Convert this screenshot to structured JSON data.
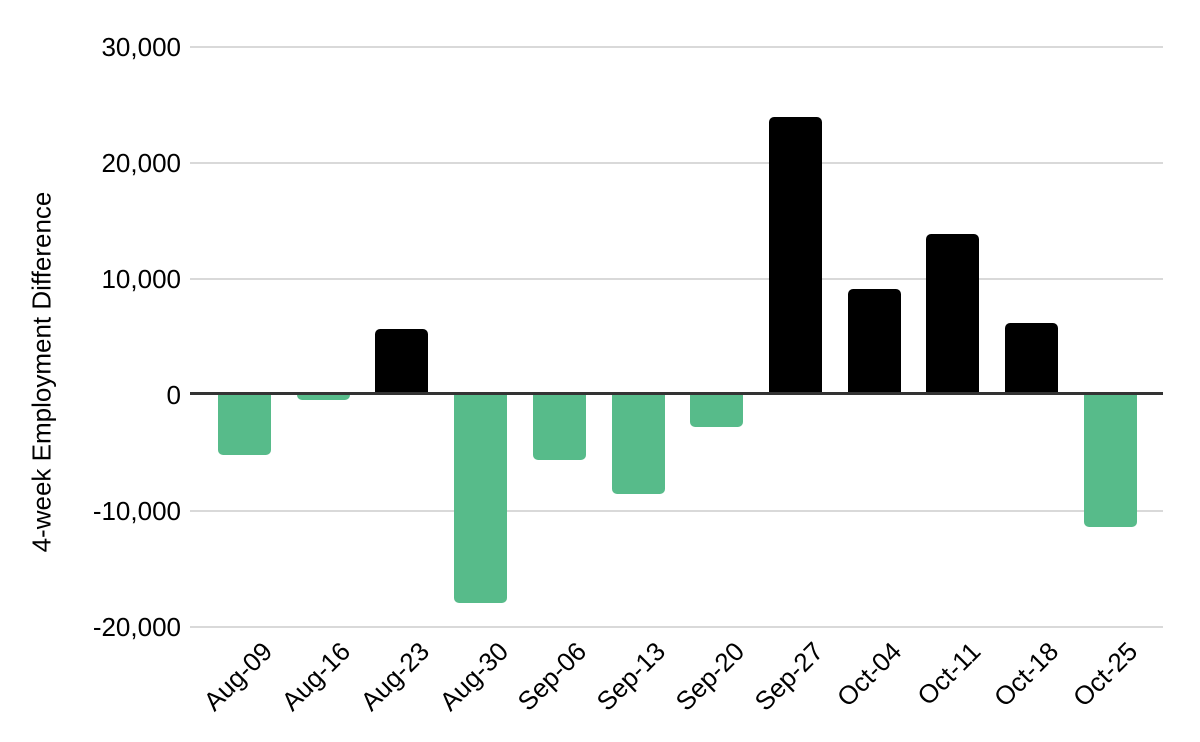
{
  "chart_data": {
    "type": "bar",
    "title": "",
    "xlabel": "",
    "ylabel": "4-week Employment Difference",
    "categories": [
      "Aug-09",
      "Aug-16",
      "Aug-23",
      "Aug-30",
      "Sep-06",
      "Sep-13",
      "Sep-20",
      "Sep-27",
      "Oct-04",
      "Oct-11",
      "Oct-18",
      "Oct-25"
    ],
    "values": [
      -5200,
      -400,
      5700,
      -17900,
      -5600,
      -8500,
      -2800,
      24000,
      9100,
      13900,
      6200,
      -11400
    ],
    "ylim": [
      -20000,
      30000
    ],
    "yticks": [
      {
        "value": 30000,
        "label": "30,000"
      },
      {
        "value": 20000,
        "label": "20,000"
      },
      {
        "value": 10000,
        "label": "10,000"
      },
      {
        "value": 0,
        "label": "0"
      },
      {
        "value": -10000,
        "label": "-10,000"
      },
      {
        "value": -20000,
        "label": "-20,000"
      }
    ],
    "grid": true,
    "legend": "none",
    "colors": {
      "positive_bar": "#000000",
      "negative_bar": "#57bb8a",
      "gridline": "#d9d9d9",
      "axis_line": "#333333",
      "text": "#000000"
    }
  }
}
